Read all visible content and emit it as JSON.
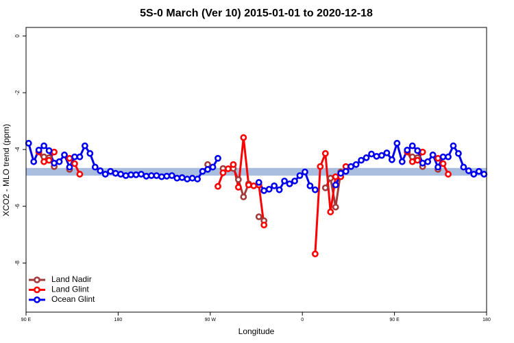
{
  "chart_data": {
    "type": "line",
    "title": "5S-0 March (Ver 10)   2015-01-01 to 2020-12-18",
    "xlabel": "Longitude",
    "ylabel": "XCO2 - MLO trend (ppm)",
    "xlim": [
      90,
      540
    ],
    "ylim": [
      -9.73,
      0.3
    ],
    "xticks": [
      {
        "value": 90,
        "label": "90 E"
      },
      180,
      {
        "value": 270,
        "label": "90 W"
      },
      {
        "value": 360,
        "label": "0"
      },
      {
        "value": 450,
        "label": "90 E"
      },
      {
        "value": 540,
        "label": "180"
      }
    ],
    "yticks": [
      0,
      -2,
      -4,
      -6,
      -8
    ],
    "legend": "bottom-left",
    "band": [
      -4.92,
      -4.65
    ],
    "band_color": "#a9bedf",
    "x": [
      92.5,
      97.5,
      102.5,
      107.5,
      112.5,
      117.5,
      122.5,
      127.5,
      132.5,
      137.5,
      142.5,
      147.5,
      152.5,
      157.5,
      162.5,
      167.5,
      172.5,
      177.5,
      182.5,
      187.5,
      192.5,
      197.5,
      202.5,
      207.5,
      212.5,
      217.5,
      222.5,
      227.5,
      232.5,
      237.5,
      242.5,
      247.5,
      252.5,
      257.5,
      262.5,
      267.5,
      272.5,
      277.5,
      282.5,
      287.5,
      292.5,
      297.5,
      302.5,
      307.5,
      312.5,
      317.5,
      322.5,
      327.5,
      332.5,
      337.5,
      342.5,
      347.5,
      352.5,
      357.5,
      362.5,
      367.5,
      372.5,
      377.5,
      382.5,
      387.5,
      392.5,
      397.5,
      402.5,
      407.5,
      412.5,
      417.5,
      422.5,
      427.5,
      432.5,
      437.5,
      442.5,
      447.5,
      452.5,
      457.5,
      462.5,
      467.5,
      472.5,
      477.5,
      482.5,
      487.5,
      492.5,
      497.5,
      502.5,
      507.5,
      512.5,
      517.5,
      522.5,
      527.5,
      532.5,
      537.5
    ],
    "series": [
      {
        "name": "Land Nadir",
        "color": "#a33a3a",
        "values": [
          null,
          null,
          -4.09,
          -4.26,
          -4.29,
          -4.6,
          null,
          null,
          -4.7,
          null,
          null,
          null,
          null,
          null,
          null,
          null,
          null,
          null,
          null,
          null,
          null,
          null,
          null,
          null,
          null,
          null,
          null,
          null,
          null,
          null,
          null,
          null,
          null,
          null,
          null,
          -4.53,
          null,
          null,
          -4.67,
          null,
          -4.67,
          -5.06,
          -5.67,
          -5.21,
          null,
          -6.37,
          -6.51,
          null,
          null,
          null,
          null,
          null,
          null,
          null,
          null,
          null,
          null,
          null,
          -5.35,
          -5.01,
          -6.03,
          -4.79,
          null,
          null,
          null,
          null,
          null,
          null,
          null,
          null,
          null,
          null,
          null,
          null,
          -4.09,
          -4.26,
          -4.29,
          -4.6,
          null,
          null,
          -4.7,
          null,
          null,
          null,
          null,
          null,
          null,
          null,
          null,
          null
        ]
      },
      {
        "name": "Land Glint",
        "color": "#ff0000",
        "values": [
          null,
          null,
          -4.07,
          -4.43,
          -4.38,
          -4.09,
          null,
          null,
          -4.31,
          -4.5,
          -4.87,
          null,
          null,
          null,
          null,
          null,
          null,
          null,
          null,
          null,
          null,
          null,
          null,
          null,
          null,
          null,
          null,
          null,
          null,
          null,
          null,
          null,
          null,
          null,
          null,
          null,
          null,
          -5.3,
          -4.82,
          -4.68,
          -4.53,
          -5.33,
          -3.58,
          -5.25,
          -5.28,
          -5.25,
          -6.66,
          null,
          null,
          null,
          null,
          null,
          null,
          null,
          null,
          null,
          -7.68,
          -4.6,
          -4.14,
          -6.2,
          -4.96,
          -4.96,
          -4.6,
          null,
          null,
          null,
          null,
          null,
          null,
          null,
          null,
          null,
          null,
          null,
          -4.07,
          -4.43,
          -4.38,
          -4.09,
          null,
          null,
          -4.31,
          -4.5,
          -4.87,
          null,
          null,
          null,
          null,
          null,
          null,
          null
        ]
      },
      {
        "name": "Ocean Glint",
        "color": "#0000ee",
        "values": [
          -3.78,
          -4.43,
          -4.02,
          -3.87,
          -4.04,
          -4.48,
          -4.43,
          -4.19,
          -4.62,
          -4.26,
          -4.26,
          -3.87,
          -4.14,
          -4.62,
          -4.75,
          -4.87,
          -4.77,
          -4.84,
          -4.87,
          -4.92,
          -4.89,
          -4.89,
          -4.87,
          -4.94,
          -4.92,
          -4.92,
          -4.96,
          -4.94,
          -4.92,
          -5.01,
          -4.99,
          -5.04,
          -5.01,
          -5.04,
          -4.77,
          -4.7,
          -4.62,
          -4.31,
          null,
          null,
          null,
          null,
          null,
          null,
          null,
          -5.16,
          -5.45,
          -5.4,
          -5.28,
          -5.42,
          -5.11,
          -5.21,
          -5.11,
          -4.92,
          -4.79,
          -5.28,
          -5.42,
          null,
          null,
          null,
          -5.25,
          -4.84,
          -4.77,
          -4.6,
          -4.53,
          -4.38,
          -4.29,
          -4.16,
          -4.24,
          -4.21,
          -4.12,
          -4.36,
          -3.78,
          -4.43,
          -4.02,
          -3.87,
          -4.04,
          -4.48,
          -4.43,
          -4.19,
          -4.62,
          -4.26,
          -4.26,
          -3.87,
          -4.14,
          -4.62,
          -4.75,
          -4.87,
          -4.77,
          -4.87
        ]
      }
    ]
  }
}
